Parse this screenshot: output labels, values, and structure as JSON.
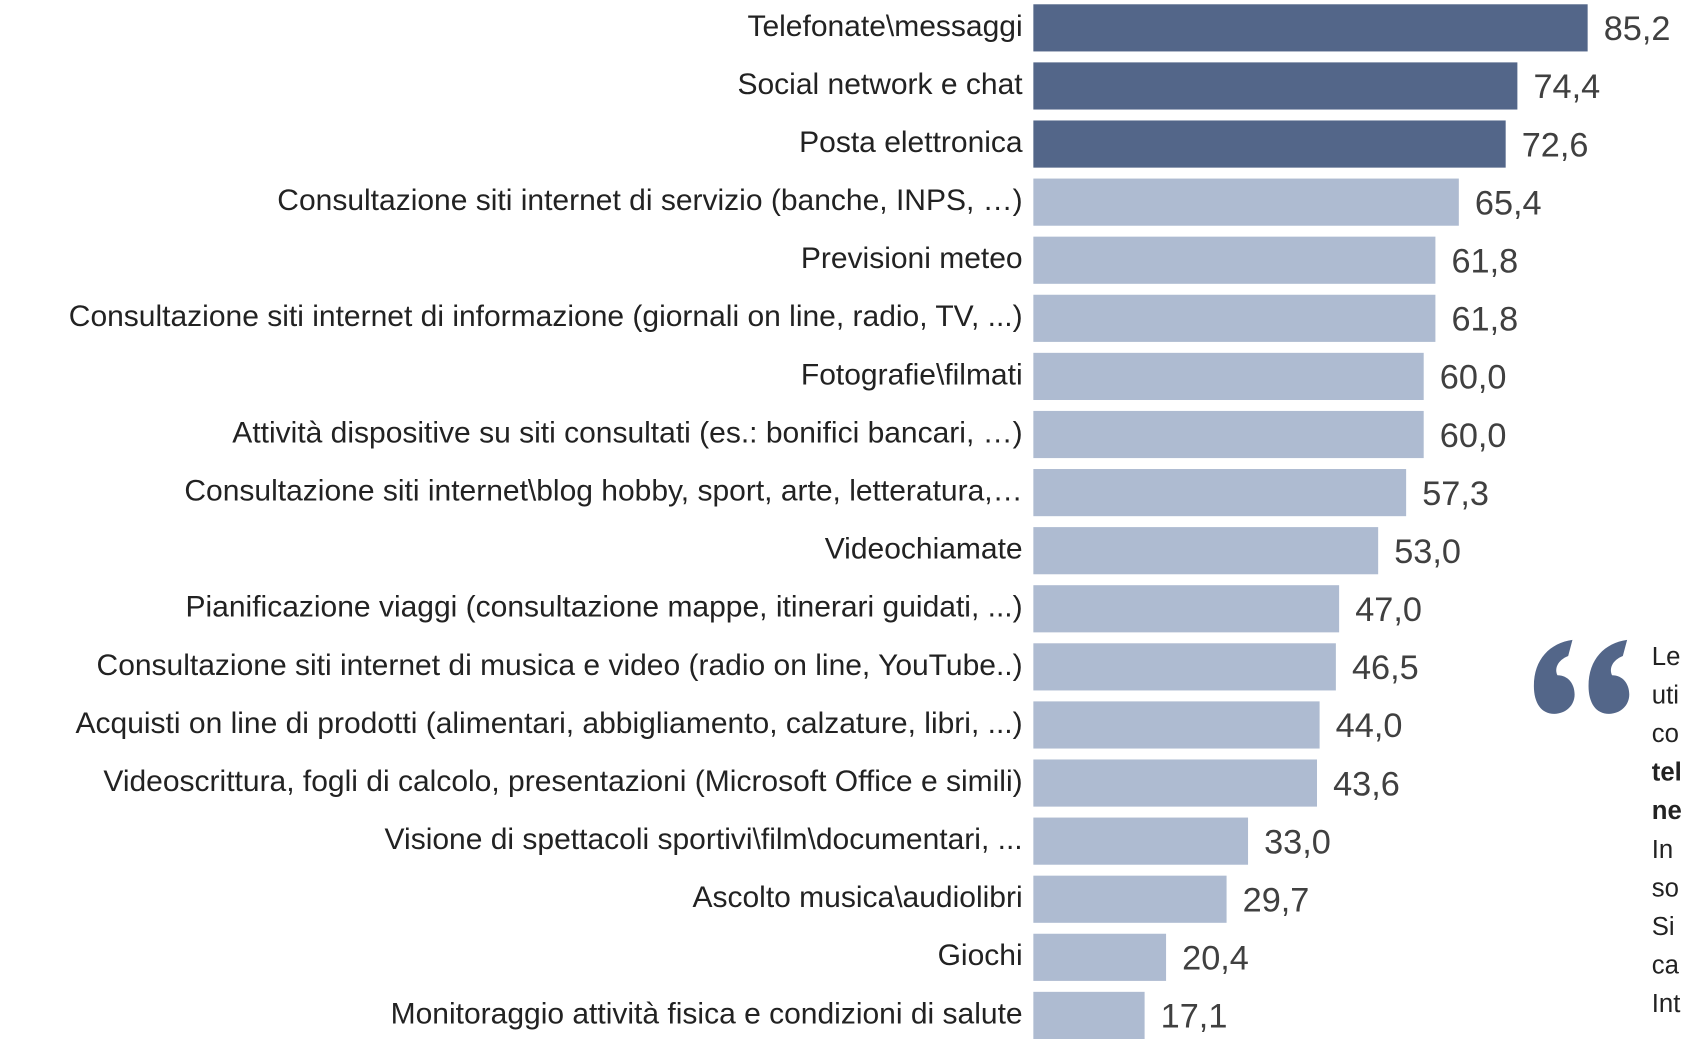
{
  "chart_data": {
    "type": "barh",
    "categories": [
      "Telefonate\\messaggi",
      "Social network e chat",
      "Posta elettronica",
      "Consultazione siti internet di servizio (banche, INPS, …)",
      "Previsioni meteo",
      "Consultazione siti internet di informazione (giornali on line, radio, TV, ...)",
      "Fotografie\\filmati",
      "Attività dispositive su siti consultati (es.: bonifici bancari, …)",
      "Consultazione siti internet\\blog hobby, sport, arte, letteratura,…",
      "Videochiamate",
      "Pianificazione viaggi (consultazione mappe, itinerari guidati, ...)",
      "Consultazione siti internet di musica e video (radio on line, YouTube..)",
      "Acquisti on line di prodotti (alimentari, abbigliamento, calzature, libri, ...)",
      "Videoscrittura, fogli di calcolo, presentazioni (Microsoft Office e simili)",
      "Visione di spettacoli sportivi\\film\\documentari, ...",
      "Ascolto musica\\audiolibri",
      "Giochi",
      "Monitoraggio attività fisica e condizioni di salute"
    ],
    "values": [
      85.2,
      74.4,
      72.6,
      65.4,
      61.8,
      61.8,
      60.0,
      60.0,
      57.3,
      53.0,
      47.0,
      46.5,
      44.0,
      43.6,
      33.0,
      29.7,
      20.4,
      17.1
    ],
    "value_labels": [
      "85,2",
      "74,4",
      "72,6",
      "65,4",
      "61,8",
      "61,8",
      "60,0",
      "60,0",
      "57,3",
      "53,0",
      "47,0",
      "46,5",
      "44,0",
      "43,6",
      "33,0",
      "29,7",
      "20,4",
      "17,1"
    ],
    "colors": [
      "#536689",
      "#536689",
      "#536689",
      "#aebbd1",
      "#aebbd1",
      "#aebbd1",
      "#aebbd1",
      "#aebbd1",
      "#aebbd1",
      "#aebbd1",
      "#aebbd1",
      "#aebbd1",
      "#aebbd1",
      "#aebbd1",
      "#aebbd1",
      "#aebbd1",
      "#aebbd1",
      "#aebbd1"
    ],
    "xlim": [
      0,
      100
    ],
    "annotation": [
      {
        "text": "Le",
        "bold": false
      },
      {
        "text": "uti",
        "bold": false
      },
      {
        "text": "co",
        "bold": false
      },
      {
        "text": "tel",
        "bold": true
      },
      {
        "text": "ne",
        "bold": true
      },
      {
        "text": "In",
        "bold": false
      },
      {
        "text": "so",
        "bold": false
      },
      {
        "text": "Si",
        "bold": false
      },
      {
        "text": "ca",
        "bold": false
      },
      {
        "text": "Int",
        "bold": false
      }
    ]
  }
}
